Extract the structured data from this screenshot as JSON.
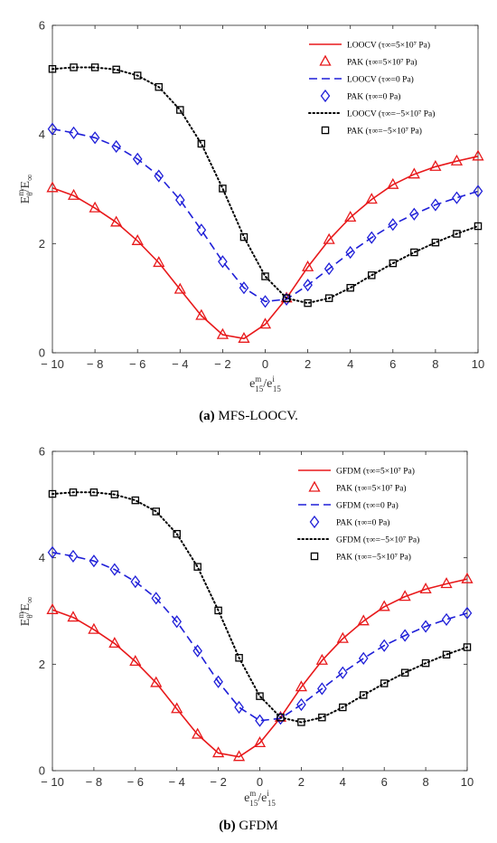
{
  "panels": [
    {
      "caption_letter": "(a)",
      "caption_text": " MFS-LOOCV.",
      "chart_data": {
        "type": "line",
        "xlabel": "e^m_15/e^i_15",
        "ylabel": "E^m_θ/E_∞",
        "xlim": [
          -10,
          10
        ],
        "ylim": [
          0,
          6
        ],
        "xticks": [
          -10,
          -8,
          -6,
          -4,
          -2,
          0,
          2,
          4,
          6,
          8,
          10
        ],
        "yticks": [
          0,
          2,
          4,
          6
        ],
        "legend_position": "top-right",
        "x": [
          -10,
          -9,
          -8,
          -7,
          -6,
          -5,
          -4,
          -3,
          -2,
          -1,
          0,
          1,
          2,
          3,
          4,
          5,
          6,
          7,
          8,
          9,
          10
        ],
        "series": [
          {
            "name": "LOOCV (τ∞=5×10⁷ Pa)",
            "kind": "line",
            "style": "solid",
            "color": "#e8191b",
            "values": [
              3.02,
              2.88,
              2.65,
              2.39,
              2.05,
              1.65,
              1.16,
              0.68,
              0.33,
              0.26,
              0.52,
              1.0,
              1.57,
              2.07,
              2.48,
              2.81,
              3.08,
              3.27,
              3.41,
              3.51,
              3.6
            ]
          },
          {
            "name": "PAK (τ∞=5×10⁷ Pa)",
            "kind": "marker",
            "marker": "triangle",
            "color": "#e8191b",
            "values": [
              3.02,
              2.88,
              2.65,
              2.39,
              2.05,
              1.65,
              1.16,
              0.68,
              0.33,
              0.26,
              0.52,
              1.0,
              1.57,
              2.07,
              2.48,
              2.81,
              3.08,
              3.27,
              3.41,
              3.51,
              3.6
            ]
          },
          {
            "name": "LOOCV (τ∞=0 Pa)",
            "kind": "line",
            "style": "dashed",
            "color": "#1f1fd8",
            "values": [
              4.1,
              4.03,
              3.94,
              3.78,
              3.55,
              3.24,
              2.8,
              2.25,
              1.67,
              1.19,
              0.94,
              0.98,
              1.24,
              1.54,
              1.84,
              2.11,
              2.35,
              2.54,
              2.71,
              2.84,
              2.96
            ]
          },
          {
            "name": "PAK (τ∞=0 Pa)",
            "kind": "marker",
            "marker": "diamond",
            "color": "#1f1fd8",
            "values": [
              4.1,
              4.03,
              3.94,
              3.78,
              3.55,
              3.24,
              2.8,
              2.25,
              1.67,
              1.19,
              0.94,
              0.98,
              1.24,
              1.54,
              1.84,
              2.11,
              2.35,
              2.54,
              2.71,
              2.84,
              2.96
            ]
          },
          {
            "name": "LOOCV (τ∞=−5×10⁷ Pa)",
            "kind": "line",
            "style": "dotted",
            "color": "#000000",
            "values": [
              5.2,
              5.23,
              5.23,
              5.19,
              5.08,
              4.87,
              4.45,
              3.83,
              3.01,
              2.12,
              1.4,
              1.0,
              0.91,
              1.0,
              1.19,
              1.42,
              1.64,
              1.84,
              2.02,
              2.18,
              2.32
            ]
          },
          {
            "name": "PAK (τ∞=−5×10⁷ Pa)",
            "kind": "marker",
            "marker": "square",
            "color": "#000000",
            "values": [
              5.2,
              5.23,
              5.23,
              5.19,
              5.08,
              4.87,
              4.45,
              3.83,
              3.01,
              2.12,
              1.4,
              1.0,
              0.91,
              1.0,
              1.19,
              1.42,
              1.64,
              1.84,
              2.02,
              2.18,
              2.32
            ]
          }
        ]
      }
    },
    {
      "caption_letter": "(b)",
      "caption_text": " GFDM",
      "chart_data": {
        "type": "line",
        "xlabel": "e^m_15/e^i_15",
        "ylabel": "E^m_θ/E_∞",
        "xlim": [
          -10,
          10
        ],
        "ylim": [
          0,
          6
        ],
        "xticks": [
          -10,
          -8,
          -6,
          -4,
          -2,
          0,
          2,
          4,
          6,
          8,
          10
        ],
        "yticks": [
          0,
          2,
          4,
          6
        ],
        "legend_position": "top-right",
        "x": [
          -10,
          -9,
          -8,
          -7,
          -6,
          -5,
          -4,
          -3,
          -2,
          -1,
          0,
          1,
          2,
          3,
          4,
          5,
          6,
          7,
          8,
          9,
          10
        ],
        "series": [
          {
            "name": "GFDM (τ∞=5×10⁷ Pa)",
            "kind": "line",
            "style": "solid",
            "color": "#e8191b",
            "values": [
              3.02,
              2.88,
              2.65,
              2.39,
              2.05,
              1.65,
              1.16,
              0.68,
              0.33,
              0.26,
              0.52,
              1.0,
              1.57,
              2.07,
              2.48,
              2.81,
              3.08,
              3.27,
              3.41,
              3.51,
              3.6
            ]
          },
          {
            "name": "PAK (τ∞=5×10⁷ Pa)",
            "kind": "marker",
            "marker": "triangle",
            "color": "#e8191b",
            "values": [
              3.02,
              2.88,
              2.65,
              2.39,
              2.05,
              1.65,
              1.16,
              0.68,
              0.33,
              0.26,
              0.52,
              1.0,
              1.57,
              2.07,
              2.48,
              2.81,
              3.08,
              3.27,
              3.41,
              3.51,
              3.6
            ]
          },
          {
            "name": "GFDM (τ∞=0 Pa)",
            "kind": "line",
            "style": "dashed",
            "color": "#1f1fd8",
            "values": [
              4.1,
              4.03,
              3.94,
              3.78,
              3.55,
              3.24,
              2.8,
              2.25,
              1.67,
              1.19,
              0.94,
              0.98,
              1.24,
              1.54,
              1.84,
              2.11,
              2.35,
              2.54,
              2.71,
              2.84,
              2.96
            ]
          },
          {
            "name": "PAK (τ∞=0 Pa)",
            "kind": "marker",
            "marker": "diamond",
            "color": "#1f1fd8",
            "values": [
              4.1,
              4.03,
              3.94,
              3.78,
              3.55,
              3.24,
              2.8,
              2.25,
              1.67,
              1.19,
              0.94,
              0.98,
              1.24,
              1.54,
              1.84,
              2.11,
              2.35,
              2.54,
              2.71,
              2.84,
              2.96
            ]
          },
          {
            "name": "GFDM (τ∞=−5×10⁷ Pa)",
            "kind": "line",
            "style": "dotted",
            "color": "#000000",
            "values": [
              5.2,
              5.23,
              5.23,
              5.19,
              5.08,
              4.87,
              4.45,
              3.83,
              3.01,
              2.12,
              1.4,
              1.0,
              0.91,
              1.0,
              1.19,
              1.42,
              1.64,
              1.84,
              2.02,
              2.18,
              2.32
            ]
          },
          {
            "name": "PAK (τ∞=−5×10⁷ Pa)",
            "kind": "marker",
            "marker": "square",
            "color": "#000000",
            "values": [
              5.2,
              5.23,
              5.23,
              5.19,
              5.08,
              4.87,
              4.45,
              3.83,
              3.01,
              2.12,
              1.4,
              1.0,
              0.91,
              1.0,
              1.19,
              1.42,
              1.64,
              1.84,
              2.02,
              2.18,
              2.32
            ]
          }
        ]
      }
    }
  ]
}
